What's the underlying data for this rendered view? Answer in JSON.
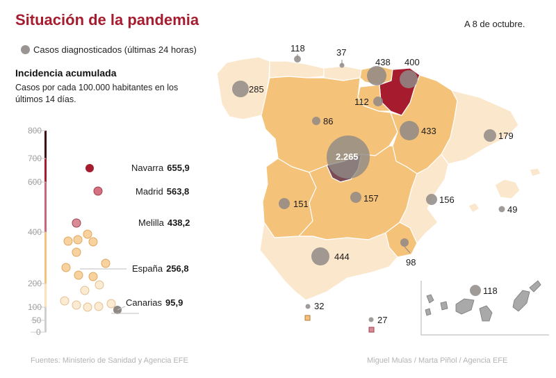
{
  "header": {
    "title": "Situación de la pandemia",
    "date": "A 8 de octubre."
  },
  "legend": {
    "label": "Casos diagnosticados (últimas 24 horas)"
  },
  "incidence": {
    "title": "Incidencia acumulada",
    "subtitle": "Casos por cada 100.000 habitantes en los últimos 14 días."
  },
  "axis": {
    "ticks": [
      "800",
      "700",
      "600",
      "400",
      "200",
      "100",
      "50",
      "0"
    ]
  },
  "highlights": [
    {
      "name": "Navarra",
      "value": "655,9"
    },
    {
      "name": "Madrid",
      "value": "563,8"
    },
    {
      "name": "Melilla",
      "value": "438,2"
    },
    {
      "name": "España",
      "value": "256,8"
    },
    {
      "name": "Canarias",
      "value": "95,9"
    }
  ],
  "cases": {
    "galicia": "285",
    "asturias": "118",
    "cantabria": "37",
    "pais_vasco": "438",
    "navarra": "400",
    "la_rioja": "112",
    "castilla_leon": "86",
    "aragon": "433",
    "cataluna": "179",
    "madrid": "2.265",
    "extremadura": "151",
    "castilla_la_mancha": "157",
    "valencia": "156",
    "baleares": "49",
    "murcia": "98",
    "andalucia": "444",
    "ceuta": "32",
    "melilla": "27",
    "canarias": "118"
  },
  "colors": {
    "title": "#a61c2e",
    "high": "#a61c2e",
    "medium": "#f5c27a",
    "low": "#fbe7cc",
    "bubble": "#8f8986",
    "madrid": "#7a4a55"
  },
  "footer": {
    "source": "Fuentes: Ministerio de Sanidad y Agencia EFE",
    "credit": "Miguel Mulas / Marta Piñol / Agencia EFE"
  }
}
